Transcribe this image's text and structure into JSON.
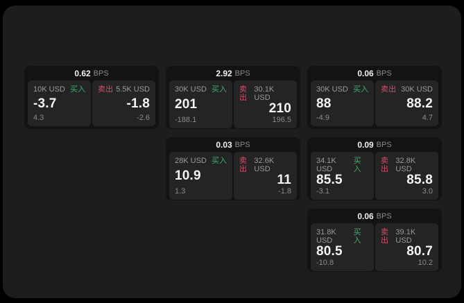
{
  "colors": {
    "page_bg": "#000000",
    "panel_bg": "#1d1d1e",
    "card_bg": "#131314",
    "tile_bg": "#242425",
    "text_primary": "#f2f2f2",
    "text_muted": "#8b8b8b",
    "buy_green": "#3fae6e",
    "sell_red": "#cf4f68"
  },
  "labels": {
    "bps_unit": "BPS",
    "buy": "买入",
    "sell": "卖出"
  },
  "cards": [
    {
      "bps": "0.62",
      "buy": {
        "amount": "10K USD",
        "price": "-3.7",
        "delta": "4.3"
      },
      "sell": {
        "amount": "5.5K USD",
        "price": "-1.8",
        "delta": "-2.6"
      }
    },
    {
      "bps": "2.92",
      "buy": {
        "amount": "30K USD",
        "price": "201",
        "delta": "-188.1"
      },
      "sell": {
        "amount": "30.1K USD",
        "price": "210",
        "delta": "196.5"
      }
    },
    {
      "bps": "0.06",
      "buy": {
        "amount": "30K USD",
        "price": "88",
        "delta": "-4.9"
      },
      "sell": {
        "amount": "30K USD",
        "price": "88.2",
        "delta": "4.7"
      }
    },
    {
      "bps": "0.03",
      "buy": {
        "amount": "28K USD",
        "price": "10.9",
        "delta": "1.3"
      },
      "sell": {
        "amount": "32.6K USD",
        "price": "11",
        "delta": "-1.8"
      }
    },
    {
      "bps": "0.09",
      "buy": {
        "amount": "34.1K USD",
        "price": "85.5",
        "delta": "-3.1"
      },
      "sell": {
        "amount": "32.8K USD",
        "price": "85.8",
        "delta": "3.0"
      }
    },
    {
      "bps": "0.06",
      "buy": {
        "amount": "31.8K USD",
        "price": "80.5",
        "delta": "-10.8"
      },
      "sell": {
        "amount": "39.1K USD",
        "price": "80.7",
        "delta": "10.2"
      }
    }
  ]
}
